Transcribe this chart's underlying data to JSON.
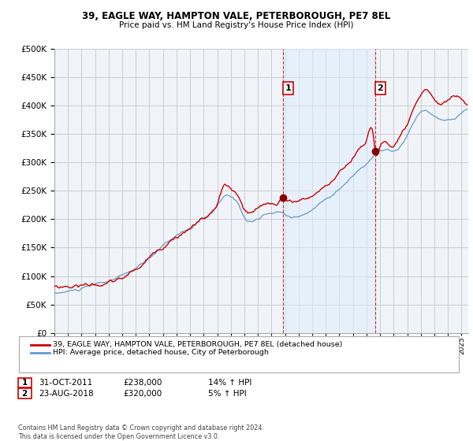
{
  "title": "39, EAGLE WAY, HAMPTON VALE, PETERBOROUGH, PE7 8EL",
  "subtitle": "Price paid vs. HM Land Registry's House Price Index (HPI)",
  "ytick_values": [
    0,
    50000,
    100000,
    150000,
    200000,
    250000,
    300000,
    350000,
    400000,
    450000,
    500000
  ],
  "ylim": [
    0,
    500000
  ],
  "xlim_start": 1995.0,
  "xlim_end": 2025.5,
  "red_line_color": "#cc0000",
  "blue_line_color": "#6699cc",
  "blue_fill_color": "#ddeeff",
  "background_color": "#ffffff",
  "plot_bg_color": "#f0f4f8",
  "grid_color": "#cccccc",
  "marker1_x": 2011.83,
  "marker1_y": 238000,
  "marker2_x": 2018.64,
  "marker2_y": 320000,
  "legend_red_label": "39, EAGLE WAY, HAMPTON VALE, PETERBOROUGH, PE7 8EL (detached house)",
  "legend_blue_label": "HPI: Average price, detached house, City of Peterborough",
  "footer": "Contains HM Land Registry data © Crown copyright and database right 2024.\nThis data is licensed under the Open Government Licence v3.0."
}
